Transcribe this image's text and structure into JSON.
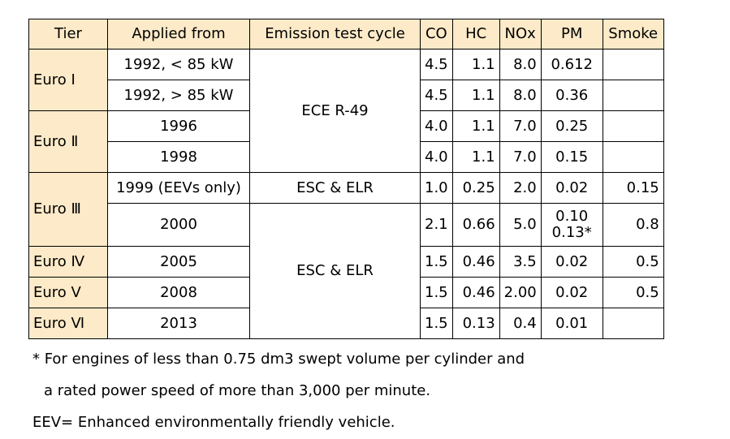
{
  "headers": {
    "tier": "Tier",
    "applied_from": "Applied from",
    "test_cycle": "Emission test cycle",
    "co": "CO",
    "hc": "HC",
    "nox": "NOx",
    "pm": "PM",
    "smoke": "Smoke"
  },
  "tiers": {
    "euro1": "Euro Ⅰ",
    "euro2": "Euro Ⅱ",
    "euro3": "Euro Ⅲ",
    "euro4": "Euro Ⅳ",
    "euro5": "Euro Ⅴ",
    "euro6": "Euro Ⅵ"
  },
  "cycles": {
    "ece_r49": "ECE R-49",
    "esc_elr_1": "ESC & ELR",
    "esc_elr_2": "ESC & ELR"
  },
  "rows": [
    {
      "applied_from": "1992, < 85 kW",
      "co": "4.5",
      "hc": "1.1",
      "nox": "8.0",
      "pm": "0.612",
      "smoke": ""
    },
    {
      "applied_from": "1992, > 85 kW",
      "co": "4.5",
      "hc": "1.1",
      "nox": "8.0",
      "pm": "0.36",
      "smoke": ""
    },
    {
      "applied_from": "1996",
      "co": "4.0",
      "hc": "1.1",
      "nox": "7.0",
      "pm": "0.25",
      "smoke": ""
    },
    {
      "applied_from": "1998",
      "co": "4.0",
      "hc": "1.1",
      "nox": "7.0",
      "pm": "0.15",
      "smoke": ""
    },
    {
      "applied_from": "1999 (EEVs only)",
      "co": "1.0",
      "hc": "0.25",
      "nox": "2.0",
      "pm": "0.02",
      "smoke": "0.15"
    },
    {
      "applied_from": "2000",
      "co": "2.1",
      "hc": "0.66",
      "nox": "5.0",
      "pm": "0.10",
      "pm_alt": "0.13*",
      "smoke": "0.8"
    },
    {
      "applied_from": "2005",
      "co": "1.5",
      "hc": "0.46",
      "nox": "3.5",
      "pm": "0.02",
      "smoke": "0.5"
    },
    {
      "applied_from": "2008",
      "co": "1.5",
      "hc": "0.46",
      "nox": "2.00",
      "pm": "0.02",
      "smoke": "0.5"
    },
    {
      "applied_from": "2013",
      "co": "1.5",
      "hc": "0.13",
      "nox": "0.4",
      "pm": "0.01",
      "smoke": ""
    }
  ],
  "footnotes": {
    "line1": "* For engines of less than 0.75 dm3 swept volume per cylinder and",
    "line2": "a rated power speed of more than 3,000 per minute.",
    "line3": "EEV= Enhanced environmentally friendly vehicle."
  },
  "colors": {
    "header_fill": "#fdeac8",
    "border": "#000000"
  }
}
